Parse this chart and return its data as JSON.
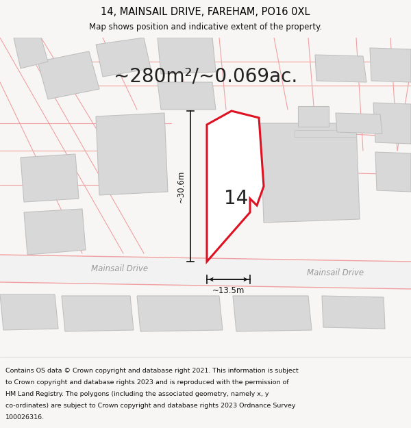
{
  "title": "14, MAINSAIL DRIVE, FAREHAM, PO16 0XL",
  "subtitle": "Map shows position and indicative extent of the property.",
  "area_text": "~280m²/~0.069ac.",
  "property_number": "14",
  "dim_width": "~13.5m",
  "dim_height": "~30.6m",
  "road_label_left": "Mainsail Drive",
  "road_label_right": "Mainsail Drive",
  "footer_lines": [
    "Contains OS data © Crown copyright and database right 2021. This information is subject",
    "to Crown copyright and database rights 2023 and is reproduced with the permission of",
    "HM Land Registry. The polygons (including the associated geometry, namely x, y",
    "co-ordinates) are subject to Crown copyright and database rights 2023 Ordnance Survey",
    "100026316."
  ],
  "bg_color": "#f7f6f4",
  "map_bg": "#ffffff",
  "plot_outline_color": "#dd1122",
  "plot_fill_color": "#ffffff",
  "road_line_color": "#f0a0a0",
  "bldg_fill": "#d8d8d8",
  "bldg_edge": "#c0c0c0",
  "title_fontsize": 10.5,
  "subtitle_fontsize": 8.5,
  "area_fontsize": 20,
  "footer_fontsize": 6.8,
  "number_fontsize": 20
}
